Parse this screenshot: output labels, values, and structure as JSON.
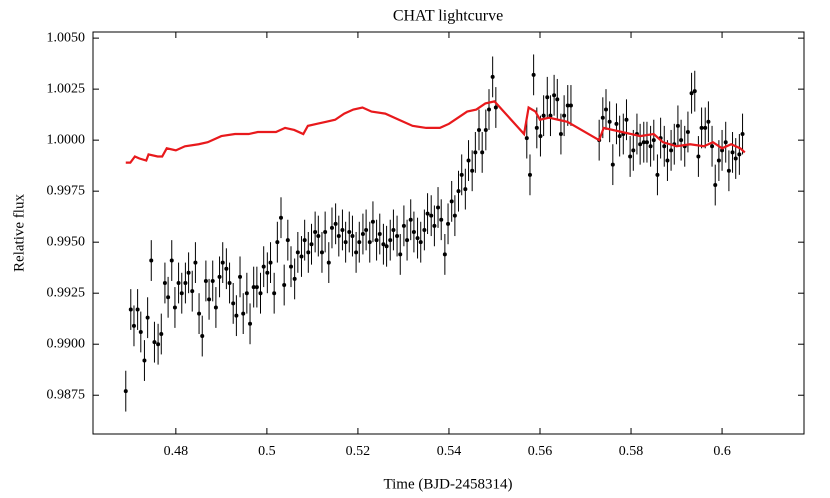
{
  "chart_data": {
    "type": "scatter",
    "title": "CHAT lightcurve",
    "x_label": "Time (BJD-2458314)",
    "y_label": "Relative flux",
    "xlim": [
      0.4618,
      0.618
    ],
    "ylim": [
      0.9856,
      1.0053
    ],
    "xticks": [
      0.48,
      0.5,
      0.52,
      0.54,
      0.56,
      0.58,
      0.6
    ],
    "yticks": [
      0.9875,
      {
        "value": 0.99,
        "label": "0.9900"
      },
      0.9925,
      {
        "value": 0.995,
        "label": "0.9950"
      },
      0.9975,
      {
        "value": 1.0,
        "label": "1.0000"
      },
      1.0025,
      {
        "value": 1.005,
        "label": "1.0050"
      }
    ],
    "series": [
      {
        "type": "errorbar",
        "color": "#000000",
        "yerr": 0.001,
        "x": [
          0.469,
          0.4701,
          0.4708,
          0.4716,
          0.4723,
          0.4731,
          0.4738,
          0.4746,
          0.4753,
          0.4761,
          0.4768,
          0.4776,
          0.4783,
          0.4791,
          0.4798,
          0.4806,
          0.4813,
          0.4821,
          0.4828,
          0.4836,
          0.4843,
          0.4851,
          0.4858,
          0.4866,
          0.4873,
          0.4881,
          0.4888,
          0.4896,
          0.4903,
          0.4911,
          0.4918,
          0.4926,
          0.4933,
          0.4941,
          0.4948,
          0.4956,
          0.4963,
          0.4971,
          0.4978,
          0.4986,
          0.4993,
          0.5001,
          0.5008,
          0.5016,
          0.5023,
          0.5031,
          0.5038,
          0.5046,
          0.5053,
          0.5061,
          0.5068,
          0.5076,
          0.5083,
          0.5091,
          0.5098,
          0.5106,
          0.5113,
          0.5121,
          0.5128,
          0.5136,
          0.5143,
          0.5151,
          0.5158,
          0.5166,
          0.5173,
          0.5181,
          0.5188,
          0.5196,
          0.5203,
          0.5211,
          0.5218,
          0.5226,
          0.5233,
          0.5241,
          0.5248,
          0.5256,
          0.5263,
          0.5271,
          0.5278,
          0.5286,
          0.5293,
          0.5301,
          0.5308,
          0.5316,
          0.5323,
          0.5331,
          0.5338,
          0.5346,
          0.5353,
          0.5361,
          0.5368,
          0.5376,
          0.5383,
          0.5391,
          0.5398,
          0.5406,
          0.5413,
          0.5421,
          0.5428,
          0.5436,
          0.5443,
          0.5451,
          0.5458,
          0.5466,
          0.5473,
          0.5481,
          0.5488,
          0.5496,
          0.5503,
          0.5571,
          0.5578,
          0.5586,
          0.5593,
          0.5601,
          0.5608,
          0.5616,
          0.5623,
          0.5631,
          0.5638,
          0.5646,
          0.5653,
          0.5661,
          0.5668,
          0.573,
          0.5738,
          0.5745,
          0.5753,
          0.576,
          0.5768,
          0.5775,
          0.5783,
          0.579,
          0.5798,
          0.5805,
          0.5813,
          0.582,
          0.5828,
          0.5835,
          0.5843,
          0.585,
          0.5858,
          0.5865,
          0.5873,
          0.588,
          0.5888,
          0.5895,
          0.5903,
          0.591,
          0.5918,
          0.5925,
          0.5933,
          0.594,
          0.5948,
          0.5955,
          0.5963,
          0.597,
          0.5978,
          0.5985,
          0.5993,
          0.6,
          0.6008,
          0.6015,
          0.6023,
          0.603,
          0.6038,
          0.6045
        ],
        "values": [
          0.9877,
          0.9917,
          0.9909,
          0.9917,
          0.9906,
          0.9892,
          0.9913,
          0.9941,
          0.9901,
          0.99,
          0.9905,
          0.993,
          0.9923,
          0.9941,
          0.9918,
          0.993,
          0.9925,
          0.993,
          0.9935,
          0.9926,
          0.994,
          0.9915,
          0.9904,
          0.9931,
          0.9922,
          0.9931,
          0.9918,
          0.9933,
          0.994,
          0.9937,
          0.993,
          0.992,
          0.9914,
          0.9933,
          0.9915,
          0.9925,
          0.991,
          0.9928,
          0.9928,
          0.9925,
          0.9938,
          0.9935,
          0.994,
          0.9925,
          0.995,
          0.9962,
          0.9929,
          0.9951,
          0.9938,
          0.9932,
          0.9945,
          0.9943,
          0.9951,
          0.9945,
          0.9949,
          0.9955,
          0.9953,
          0.9945,
          0.9955,
          0.994,
          0.9957,
          0.9959,
          0.9953,
          0.9956,
          0.995,
          0.9955,
          0.9953,
          0.9945,
          0.995,
          0.9954,
          0.9956,
          0.995,
          0.996,
          0.9951,
          0.9954,
          0.9949,
          0.9948,
          0.9951,
          0.9956,
          0.9953,
          0.9944,
          0.9958,
          0.9951,
          0.9961,
          0.9955,
          0.9952,
          0.995,
          0.9956,
          0.9964,
          0.9963,
          0.9958,
          0.9967,
          0.9961,
          0.9944,
          0.9959,
          0.997,
          0.9963,
          0.9975,
          0.9983,
          0.9976,
          0.999,
          0.9985,
          0.9994,
          1.0005,
          0.9994,
          1.0005,
          1.0015,
          1.0031,
          1.0016,
          1.0001,
          0.9983,
          1.0032,
          1.0006,
          1.0002,
          1.0012,
          1.0021,
          1.0012,
          1.0022,
          1.002,
          1.0003,
          1.0012,
          1.0017,
          1.0017,
          1.0,
          1.0011,
          1.0015,
          1.0009,
          0.9988,
          1.0008,
          1.0002,
          1.0003,
          1.001,
          0.9992,
          0.9995,
          1.0003,
          0.9998,
          0.9999,
          0.9999,
          0.9997,
          1.0,
          0.9983,
          1.0001,
          0.9997,
          0.999,
          0.9995,
          0.9998,
          1.0007,
          1.0,
          0.9997,
          1.0004,
          1.0023,
          1.0024,
          0.9992,
          1.0006,
          1.0006,
          1.0009,
          0.9997,
          0.9978,
          0.999,
          0.9995,
          0.9999,
          0.9985,
          0.9994,
          0.9991,
          0.9993,
          1.0003
        ]
      },
      {
        "type": "line",
        "color": "#e8191c",
        "x": [
          0.469,
          0.47,
          0.471,
          0.472,
          0.4735,
          0.474,
          0.476,
          0.477,
          0.478,
          0.48,
          0.482,
          0.485,
          0.487,
          0.49,
          0.493,
          0.496,
          0.498,
          0.5,
          0.502,
          0.504,
          0.506,
          0.508,
          0.509,
          0.511,
          0.513,
          0.515,
          0.517,
          0.519,
          0.521,
          0.523,
          0.526,
          0.529,
          0.532,
          0.535,
          0.538,
          0.54,
          0.542,
          0.544,
          0.546,
          0.548,
          0.55,
          0.5565,
          0.5575,
          0.559,
          0.56,
          0.562,
          0.564,
          0.566,
          0.573,
          0.574,
          0.578,
          0.582,
          0.585,
          0.587,
          0.59,
          0.593,
          0.596,
          0.598,
          0.6,
          0.602,
          0.604,
          0.605
        ],
        "values": [
          0.9989,
          0.9989,
          0.9992,
          0.9991,
          0.999,
          0.9993,
          0.9992,
          0.9992,
          0.9996,
          0.9995,
          0.9997,
          0.9998,
          0.9999,
          1.0002,
          1.0003,
          1.0003,
          1.0004,
          1.0004,
          1.0004,
          1.0006,
          1.0005,
          1.0003,
          1.0007,
          1.0008,
          1.0009,
          1.001,
          1.0013,
          1.0015,
          1.0016,
          1.0014,
          1.0013,
          1.001,
          1.0007,
          1.0006,
          1.0006,
          1.0008,
          1.0011,
          1.0014,
          1.0015,
          1.0018,
          1.0019,
          1.0003,
          1.0016,
          1.0014,
          1.001,
          1.0011,
          1.001,
          1.0009,
          1.0,
          1.0006,
          1.0004,
          1.0002,
          1.0003,
          0.9999,
          0.9997,
          0.9998,
          0.9997,
          0.9999,
          0.9996,
          0.9998,
          0.9996,
          0.9994
        ]
      }
    ]
  }
}
